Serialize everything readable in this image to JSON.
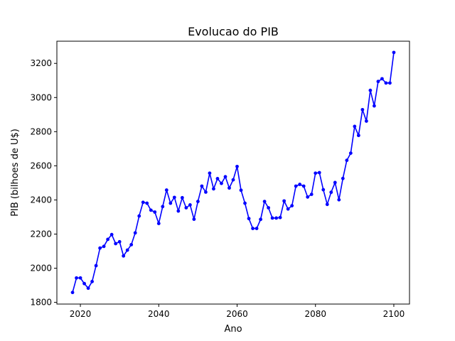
{
  "chart_data": {
    "type": "line",
    "title": "Evolucao do PIB",
    "xlabel": "Ano",
    "ylabel": "PIB (bilhoes de U$)",
    "xlim": [
      2014,
      2104
    ],
    "ylim": [
      1790,
      3330
    ],
    "xticks": [
      2020,
      2040,
      2060,
      2080,
      2100
    ],
    "yticks": [
      1800,
      2000,
      2200,
      2400,
      2600,
      2800,
      3000,
      3200
    ],
    "grid": false,
    "line_color": "#0000ff",
    "marker": "circle",
    "x": [
      2018,
      2019,
      2020,
      2021,
      2022,
      2023,
      2024,
      2025,
      2026,
      2027,
      2028,
      2029,
      2030,
      2031,
      2032,
      2033,
      2034,
      2035,
      2036,
      2037,
      2038,
      2039,
      2040,
      2041,
      2042,
      2043,
      2044,
      2045,
      2046,
      2047,
      2048,
      2049,
      2050,
      2051,
      2052,
      2053,
      2054,
      2055,
      2056,
      2057,
      2058,
      2059,
      2060,
      2061,
      2062,
      2063,
      2064,
      2065,
      2066,
      2067,
      2068,
      2069,
      2070,
      2071,
      2072,
      2073,
      2074,
      2075,
      2076,
      2077,
      2078,
      2079,
      2080,
      2081,
      2082,
      2083,
      2084,
      2085,
      2086,
      2087,
      2088,
      2089,
      2090,
      2091,
      2092,
      2093,
      2094,
      2095,
      2096,
      2097,
      2098,
      2099,
      2100
    ],
    "y": [
      1858,
      1943,
      1943,
      1910,
      1883,
      1922,
      2015,
      2118,
      2128,
      2169,
      2197,
      2144,
      2155,
      2072,
      2106,
      2138,
      2207,
      2306,
      2386,
      2381,
      2340,
      2329,
      2262,
      2361,
      2458,
      2381,
      2415,
      2335,
      2413,
      2354,
      2371,
      2287,
      2391,
      2481,
      2446,
      2557,
      2465,
      2525,
      2497,
      2536,
      2470,
      2518,
      2596,
      2457,
      2381,
      2291,
      2233,
      2233,
      2286,
      2391,
      2354,
      2294,
      2294,
      2297,
      2394,
      2347,
      2366,
      2481,
      2491,
      2481,
      2417,
      2433,
      2557,
      2560,
      2460,
      2374,
      2445,
      2502,
      2401,
      2526,
      2632,
      2674,
      2831,
      2778,
      2929,
      2862,
      3042,
      2951,
      3094,
      3110,
      3085,
      3085,
      3264
    ]
  }
}
